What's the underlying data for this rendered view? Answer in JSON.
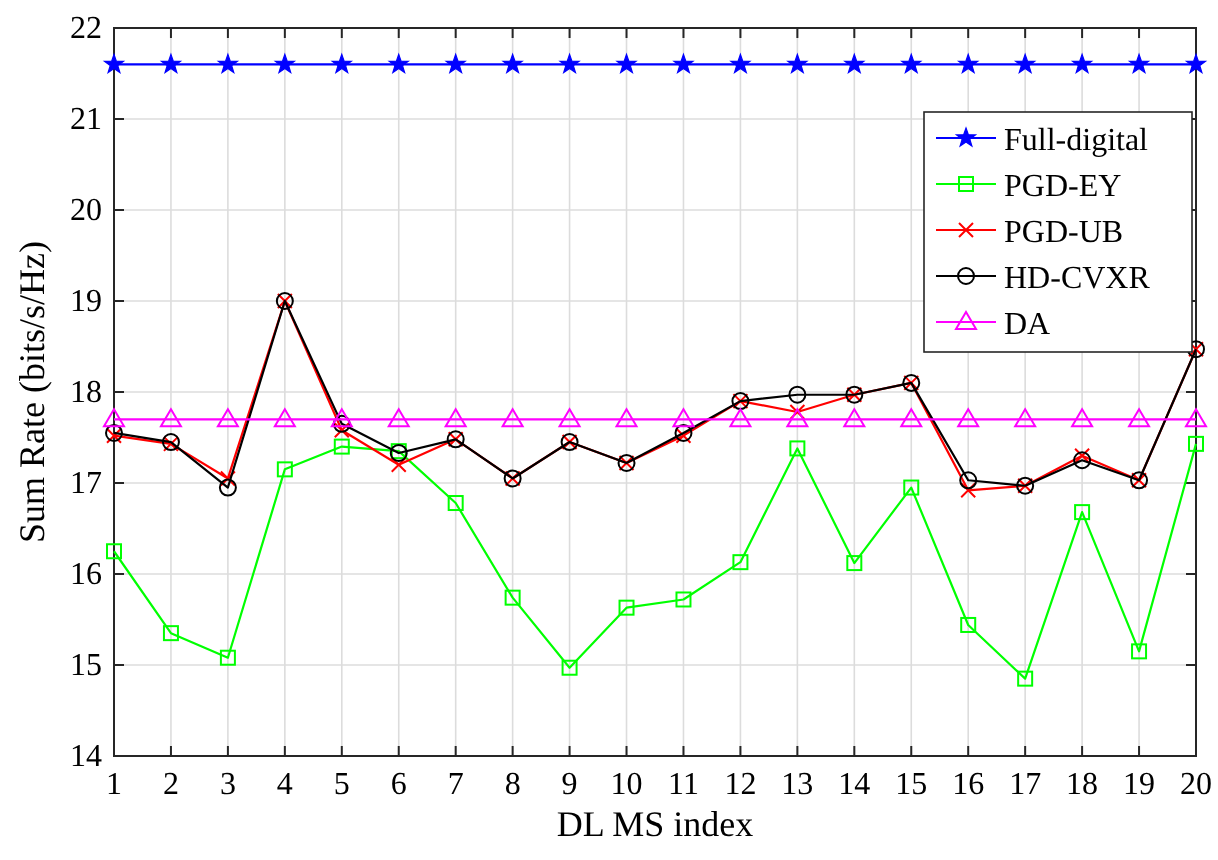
{
  "chart_data": {
    "type": "line",
    "xlabel": "DL MS index",
    "ylabel": "Sum Rate (bits/s/Hz)",
    "x": [
      1,
      2,
      3,
      4,
      5,
      6,
      7,
      8,
      9,
      10,
      11,
      12,
      13,
      14,
      15,
      16,
      17,
      18,
      19,
      20
    ],
    "xlim": [
      1,
      20
    ],
    "xticks": [
      1,
      2,
      3,
      4,
      5,
      6,
      7,
      8,
      9,
      10,
      11,
      12,
      13,
      14,
      15,
      16,
      17,
      18,
      19,
      20
    ],
    "ylim": [
      14,
      22
    ],
    "yticks": [
      14,
      15,
      16,
      17,
      18,
      19,
      20,
      21,
      22
    ],
    "grid": true,
    "legend": "top right",
    "line_style": "solid",
    "series": [
      {
        "name": "Full-digital",
        "color": "#0000ff",
        "marker": "star",
        "values": [
          21.6,
          21.6,
          21.6,
          21.6,
          21.6,
          21.6,
          21.6,
          21.6,
          21.6,
          21.6,
          21.6,
          21.6,
          21.6,
          21.6,
          21.6,
          21.6,
          21.6,
          21.6,
          21.6,
          21.6
        ]
      },
      {
        "name": "PGD-EY",
        "color": "#00ff00",
        "marker": "square",
        "values": [
          16.25,
          15.35,
          15.08,
          17.15,
          17.4,
          17.35,
          16.78,
          15.74,
          14.97,
          15.63,
          15.72,
          16.13,
          17.38,
          16.12,
          16.95,
          15.44,
          14.85,
          16.68,
          15.15,
          17.43
        ]
      },
      {
        "name": "PGD-UB",
        "color": "#ff0000",
        "marker": "cross",
        "values": [
          17.52,
          17.43,
          17.05,
          19.0,
          17.58,
          17.2,
          17.48,
          17.05,
          17.45,
          17.22,
          17.52,
          17.9,
          17.78,
          17.97,
          18.1,
          16.92,
          16.97,
          17.3,
          17.03,
          18.47
        ]
      },
      {
        "name": "HD-CVXR",
        "color": "#000000",
        "marker": "circle",
        "values": [
          17.55,
          17.45,
          16.95,
          19.0,
          17.65,
          17.33,
          17.48,
          17.05,
          17.45,
          17.22,
          17.55,
          17.9,
          17.97,
          17.97,
          18.1,
          17.03,
          16.97,
          17.25,
          17.03,
          18.47
        ]
      },
      {
        "name": "DA",
        "color": "#ff00ff",
        "marker": "triangle",
        "values": [
          17.7,
          17.7,
          17.7,
          17.7,
          17.7,
          17.7,
          17.7,
          17.7,
          17.7,
          17.7,
          17.7,
          17.7,
          17.7,
          17.7,
          17.7,
          17.7,
          17.7,
          17.7,
          17.7,
          17.7
        ]
      }
    ]
  }
}
